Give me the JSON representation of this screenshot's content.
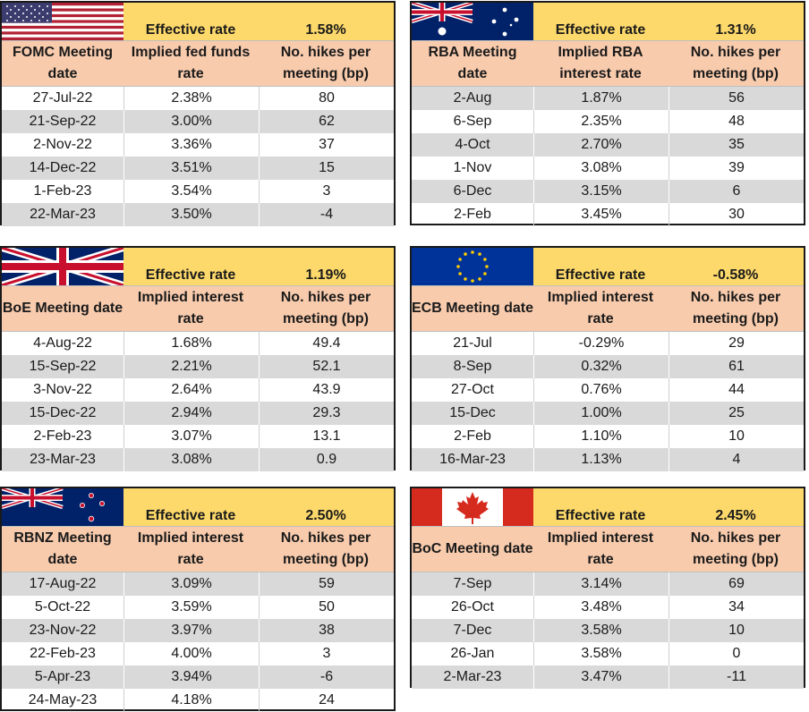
{
  "panels": [
    {
      "id": "us",
      "flag": "us-flag-icon",
      "effective_label": "Effective rate",
      "effective_value": "1.58%",
      "headers": [
        "FOMC Meeting date",
        "Implied fed funds rate",
        "No. hikes per meeting (bp)"
      ],
      "rows": [
        [
          "27-Jul-22",
          "2.38%",
          "80"
        ],
        [
          "21-Sep-22",
          "3.00%",
          "62"
        ],
        [
          "2-Nov-22",
          "3.36%",
          "37"
        ],
        [
          "14-Dec-22",
          "3.51%",
          "15"
        ],
        [
          "1-Feb-23",
          "3.54%",
          "3"
        ],
        [
          "22-Mar-23",
          "3.50%",
          "-4"
        ]
      ]
    },
    {
      "id": "au",
      "flag": "australia-flag-icon",
      "effective_label": "Effective rate",
      "effective_value": "1.31%",
      "headers": [
        "RBA Meeting date",
        "Implied RBA interest rate",
        "No. hikes per meeting (bp)"
      ],
      "rows": [
        [
          "2-Aug",
          "1.87%",
          "56"
        ],
        [
          "6-Sep",
          "2.35%",
          "48"
        ],
        [
          "4-Oct",
          "2.70%",
          "35"
        ],
        [
          "1-Nov",
          "3.08%",
          "39"
        ],
        [
          "6-Dec",
          "3.15%",
          "6"
        ],
        [
          "2-Feb",
          "3.45%",
          "30"
        ]
      ]
    },
    {
      "id": "uk",
      "flag": "uk-flag-icon",
      "effective_label": "Effective rate",
      "effective_value": "1.19%",
      "headers": [
        "BoE Meeting date",
        "Implied interest rate",
        "No. hikes per meeting (bp)"
      ],
      "rows": [
        [
          "4-Aug-22",
          "1.68%",
          "49.4"
        ],
        [
          "15-Sep-22",
          "2.21%",
          "52.1"
        ],
        [
          "3-Nov-22",
          "2.64%",
          "43.9"
        ],
        [
          "15-Dec-22",
          "2.94%",
          "29.3"
        ],
        [
          "2-Feb-23",
          "3.07%",
          "13.1"
        ],
        [
          "23-Mar-23",
          "3.08%",
          "0.9"
        ]
      ]
    },
    {
      "id": "eu",
      "flag": "eu-flag-icon",
      "effective_label": "Effective rate",
      "effective_value": "-0.58%",
      "headers": [
        "ECB Meeting date",
        "Implied interest rate",
        "No. hikes per meeting (bp)"
      ],
      "rows": [
        [
          "21-Jul",
          "-0.29%",
          "29"
        ],
        [
          "8-Sep",
          "0.32%",
          "61"
        ],
        [
          "27-Oct",
          "0.76%",
          "44"
        ],
        [
          "15-Dec",
          "1.00%",
          "25"
        ],
        [
          "2-Feb",
          "1.10%",
          "10"
        ],
        [
          "16-Mar-23",
          "1.13%",
          "4"
        ]
      ]
    },
    {
      "id": "nz",
      "flag": "new-zealand-flag-icon",
      "effective_label": "Effective rate",
      "effective_value": "2.50%",
      "headers": [
        "RBNZ Meeting date",
        "Implied interest rate",
        "No. hikes per meeting (bp)"
      ],
      "rows": [
        [
          "17-Aug-22",
          "3.09%",
          "59"
        ],
        [
          "5-Oct-22",
          "3.59%",
          "50"
        ],
        [
          "23-Nov-22",
          "3.97%",
          "38"
        ],
        [
          "22-Feb-23",
          "4.00%",
          "3"
        ],
        [
          "5-Apr-23",
          "3.94%",
          "-6"
        ],
        [
          "24-May-23",
          "4.18%",
          "24"
        ]
      ]
    },
    {
      "id": "ca",
      "flag": "canada-flag-icon",
      "effective_label": "Effective rate",
      "effective_value": "2.45%",
      "headers": [
        "BoC Meeting date",
        "Implied interest rate",
        "No. hikes per meeting (bp)"
      ],
      "rows": [
        [
          "7-Sep",
          "3.14%",
          "69"
        ],
        [
          "26-Oct",
          "3.48%",
          "34"
        ],
        [
          "7-Dec",
          "3.58%",
          "10"
        ],
        [
          "26-Jan",
          "3.58%",
          "0"
        ],
        [
          "2-Mar-23",
          "3.47%",
          "-11"
        ]
      ]
    }
  ]
}
